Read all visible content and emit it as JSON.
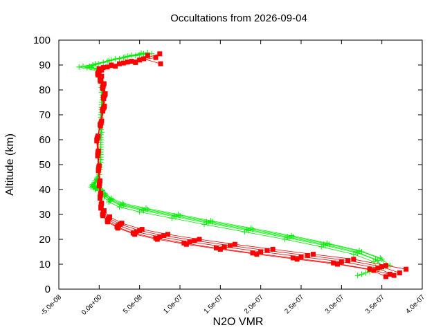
{
  "chart_data": {
    "type": "scatter",
    "title": "Occultations from 2026-09-04",
    "xlabel": "N2O VMR",
    "ylabel": "Altitude (km)",
    "xlim": [
      -5e-08,
      4e-07
    ],
    "ylim": [
      0,
      100
    ],
    "x_ticks": [
      "-5.0e-08",
      "0.0e+00",
      "5.0e-08",
      "1.0e-07",
      "1.5e-07",
      "2.0e-07",
      "2.5e-07",
      "3.0e-07",
      "3.5e-07",
      "4.0e-07"
    ],
    "x_tick_values": [
      -5e-08,
      0,
      5e-08,
      1e-07,
      1.5e-07,
      2e-07,
      2.5e-07,
      3e-07,
      3.5e-07,
      4e-07
    ],
    "y_ticks": [
      "0",
      "10",
      "20",
      "30",
      "40",
      "50",
      "60",
      "70",
      "80",
      "90",
      "100"
    ],
    "y_tick_values": [
      0,
      10,
      20,
      30,
      40,
      50,
      60,
      70,
      80,
      90,
      100
    ],
    "grid": false,
    "legend": "none",
    "series": [
      {
        "color": "#00ee00",
        "marker": "plus",
        "profiles": [
          {
            "x": [
              3.2e-07,
              3.45e-07,
              3.4e-07,
              3.15e-07,
              2.75e-07,
              2.3e-07,
              1.8e-07,
              1.3e-07,
              9e-08,
              5e-08,
              2.5e-08,
              1.2e-08,
              6e-09,
              2e-09,
              -5e-09,
              -1e-08,
              -8e-09,
              -2e-09,
              1e-09,
              2e-09,
              2e-09,
              2e-09,
              2e-09,
              3e-09,
              4e-09,
              3e-09,
              1e-09,
              0,
              -3e-09,
              -2e-08,
              -5e-09,
              1.5e-08,
              3.5e-08,
              6e-08
            ],
            "y": [
              5.5,
              8.0,
              11.0,
              14.0,
              17.0,
              20.0,
              23.0,
              26.0,
              28.5,
              31.0,
              33.0,
              35.0,
              37.0,
              39.0,
              40.0,
              41.0,
              42.0,
              45.0,
              50.0,
              55.0,
              60.0,
              65.0,
              70.0,
              75.0,
              80.0,
              83.0,
              85.0,
              87.0,
              88.5,
              89.5,
              90.5,
              92.0,
              93.5,
              95.0
            ]
          },
          {
            "x": [
              3.25e-07,
              3.5e-07,
              3.45e-07,
              3.2e-07,
              2.8e-07,
              2.35e-07,
              1.85e-07,
              1.35e-07,
              9.5e-08,
              5.5e-08,
              2.8e-08,
              1.4e-08,
              7e-09,
              3e-09,
              -4e-09,
              -7e-09,
              -4e-09,
              0,
              2e-09,
              2e-09,
              2e-09,
              2e-09,
              3e-09,
              4e-09,
              4e-09,
              2e-09,
              1e-09,
              0,
              -1e-08,
              -1e-09,
              2e-08,
              4e-08,
              5.5e-08
            ],
            "y": [
              6.0,
              8.5,
              11.5,
              14.5,
              17.5,
              20.5,
              23.5,
              26.5,
              29.0,
              31.5,
              33.5,
              35.5,
              37.5,
              39.5,
              40.5,
              41.5,
              43.0,
              47.0,
              52.0,
              57.0,
              62.0,
              67.0,
              72.0,
              77.0,
              82.0,
              85.0,
              87.0,
              88.0,
              89.0,
              90.5,
              92.5,
              94.0,
              94.5
            ]
          },
          {
            "x": [
              3.35e-07,
              3.55e-07,
              3.5e-07,
              3.25e-07,
              2.85e-07,
              2.4e-07,
              1.9e-07,
              1.4e-07,
              1e-07,
              6e-08,
              3e-08,
              1.5e-08,
              8e-09,
              4e-09,
              -3e-09,
              -6e-09,
              -3e-09,
              1e-09,
              2e-09,
              2e-09,
              3e-09,
              3e-09,
              3e-09,
              4e-09,
              3e-09,
              1e-09,
              0,
              -2e-09,
              -1.2e-08,
              1e-08,
              3e-08,
              5e-08
            ],
            "y": [
              7.0,
              9.0,
              12.0,
              15.0,
              18.0,
              21.0,
              24.0,
              27.0,
              29.5,
              32.0,
              34.0,
              36.0,
              38.0,
              39.5,
              40.5,
              41.5,
              44.0,
              48.0,
              53.0,
              58.0,
              63.0,
              68.0,
              73.0,
              78.0,
              83.0,
              86.0,
              87.5,
              88.5,
              89.5,
              91.5,
              93.0,
              94.0
            ]
          },
          {
            "x": [
              3.4e-07,
              3.6e-07,
              3.48e-07,
              3.22e-07,
              2.82e-07,
              2.38e-07,
              1.88e-07,
              1.38e-07,
              9.8e-08,
              5.8e-08,
              2.9e-08,
              1.5e-08,
              7e-09,
              3e-09,
              -4e-09,
              -9e-09,
              -5e-09,
              0,
              2e-09,
              2e-09,
              2e-09,
              3e-09,
              3e-09,
              4e-09,
              3e-09,
              1e-09,
              0,
              -1.5e-08,
              5e-09,
              2.5e-08,
              4.5e-08,
              6.5e-08
            ],
            "y": [
              8.0,
              9.5,
              12.5,
              15.5,
              18.5,
              21.5,
              24.5,
              27.5,
              30.0,
              32.5,
              34.5,
              36.5,
              38.5,
              39.8,
              40.8,
              41.8,
              43.5,
              46.0,
              51.0,
              56.0,
              61.0,
              66.0,
              71.0,
              76.0,
              81.0,
              85.5,
              87.8,
              89.0,
              91.0,
              92.5,
              93.8,
              94.5
            ]
          },
          {
            "x": [
              3.3e-07,
              3.52e-07,
              3.42e-07,
              3.18e-07,
              2.78e-07,
              2.33e-07,
              1.83e-07,
              1.33e-07,
              9.3e-08,
              5.3e-08,
              2.6e-08,
              1.3e-08,
              6e-09,
              2e-09,
              -5e-09,
              -8e-09,
              -3e-09,
              1e-09,
              2e-09,
              2e-09,
              2e-09,
              2e-09,
              3e-09,
              3e-09,
              2e-09,
              0,
              -2.5e-08,
              -8e-09,
              1.2e-08,
              3.2e-08,
              5.2e-08
            ],
            "y": [
              6.5,
              9.0,
              12.0,
              15.0,
              18.0,
              21.0,
              24.0,
              27.0,
              29.5,
              32.0,
              34.0,
              36.0,
              38.0,
              39.5,
              40.2,
              41.2,
              44.5,
              49.0,
              54.0,
              59.0,
              64.0,
              69.0,
              74.0,
              79.0,
              84.0,
              87.5,
              89.2,
              90.0,
              91.8,
              93.2,
              94.8
            ]
          }
        ]
      },
      {
        "color": "#ff0000",
        "marker": "square",
        "profiles": [
          {
            "x": [
              3.55e-07,
              3.35e-07,
              2.9e-07,
              2.4e-07,
              1.9e-07,
              1.45e-07,
              1.05e-07,
              7e-08,
              4.2e-08,
              2.2e-08,
              1e-08,
              4e-09,
              2e-09,
              1e-09,
              0,
              -1e-09,
              -2e-09,
              -3e-09,
              1e-09,
              4e-09,
              5e-09,
              4e-09,
              1e-09,
              -2e-09,
              0,
              1.5e-08,
              4e-08,
              7e-08
            ],
            "y": [
              5.0,
              8.0,
              10.5,
              12.5,
              14.5,
              16.5,
              18.5,
              20.5,
              22.5,
              25.0,
              27.5,
              30.0,
              33.0,
              37.0,
              42.0,
              48.0,
              54.0,
              60.0,
              66.0,
              72.0,
              77.0,
              81.0,
              84.0,
              86.5,
              88.5,
              90.0,
              91.5,
              93.0
            ]
          },
          {
            "x": [
              3.65e-07,
              3.45e-07,
              3e-07,
              2.5e-07,
              2e-07,
              1.55e-07,
              1.12e-07,
              7.5e-08,
              4.6e-08,
              2.4e-08,
              1.1e-08,
              5e-09,
              2.5e-09,
              1.5e-09,
              5e-10,
              -5e-10,
              -1.5e-09,
              -2.5e-09,
              2e-09,
              5e-09,
              6e-09,
              5e-09,
              2e-09,
              -1e-09,
              5e-09,
              2.5e-08,
              5e-08,
              7.5e-08
            ],
            "y": [
              5.5,
              8.5,
              11.0,
              13.0,
              15.0,
              17.0,
              19.0,
              21.0,
              23.0,
              25.5,
              28.0,
              30.5,
              33.5,
              37.5,
              42.5,
              48.5,
              54.5,
              60.5,
              66.5,
              72.5,
              77.5,
              81.5,
              84.5,
              87.0,
              89.0,
              90.5,
              92.0,
              94.5
            ]
          },
          {
            "x": [
              3.72e-07,
              3.5e-07,
              3.08e-07,
              2.58e-07,
              2.08e-07,
              1.62e-07,
              1.18e-07,
              8e-08,
              5e-08,
              2.6e-08,
              1.2e-08,
              5e-09,
              2.5e-09,
              1.5e-09,
              5e-10,
              -5e-10,
              -1.5e-09,
              -2e-09,
              2.5e-09,
              6e-09,
              7e-09,
              5e-09,
              2e-09,
              0,
              1e-08,
              3e-08,
              5.5e-08,
              7.6e-08
            ],
            "y": [
              6.5,
              9.0,
              11.5,
              13.5,
              15.5,
              17.5,
              19.5,
              21.5,
              23.5,
              26.0,
              28.5,
              31.0,
              34.0,
              38.0,
              43.0,
              49.0,
              55.0,
              61.0,
              67.0,
              73.0,
              78.0,
              82.0,
              85.0,
              87.5,
              89.2,
              90.8,
              92.5,
              90.5
            ]
          },
          {
            "x": [
              3.8e-07,
              3.55e-07,
              3.15e-07,
              2.65e-07,
              2.15e-07,
              1.68e-07,
              1.24e-07,
              8.5e-08,
              5.3e-08,
              2.8e-08,
              1.3e-08,
              6e-09,
              3e-09,
              2e-09,
              1e-09,
              0,
              -1e-09,
              -1.5e-09,
              3e-09,
              6.5e-09,
              7.5e-09,
              6e-09,
              3e-09,
              5e-10,
              1.5e-08,
              3.5e-08,
              6e-08
            ],
            "y": [
              8.0,
              9.5,
              12.0,
              14.0,
              16.0,
              18.0,
              20.0,
              22.0,
              24.0,
              26.5,
              29.0,
              31.5,
              34.5,
              38.5,
              43.5,
              49.5,
              55.5,
              61.5,
              67.5,
              73.5,
              78.5,
              82.5,
              85.5,
              88.0,
              89.8,
              91.2,
              93.8
            ]
          },
          {
            "x": [
              3.6e-07,
              3.4e-07,
              2.95e-07,
              2.45e-07,
              1.95e-07,
              1.5e-07,
              1.08e-07,
              7.2e-08,
              4.4e-08,
              2.3e-08,
              1.05e-08,
              4.5e-09,
              2e-09,
              1e-09,
              0,
              -1e-09,
              -2e-09,
              -3e-09,
              1.5e-09,
              4.5e-09,
              5.5e-09,
              4.5e-09,
              1.5e-09,
              -1.5e-09,
              3e-09,
              2e-08,
              4.5e-08
            ],
            "y": [
              6.0,
              7.5,
              10.0,
              12.0,
              14.0,
              16.0,
              18.0,
              20.0,
              22.0,
              24.5,
              27.0,
              29.5,
              32.5,
              36.5,
              41.5,
              47.5,
              53.5,
              59.5,
              65.5,
              71.5,
              76.5,
              80.5,
              83.5,
              86.0,
              88.0,
              89.5,
              91.0
            ]
          }
        ]
      }
    ]
  }
}
